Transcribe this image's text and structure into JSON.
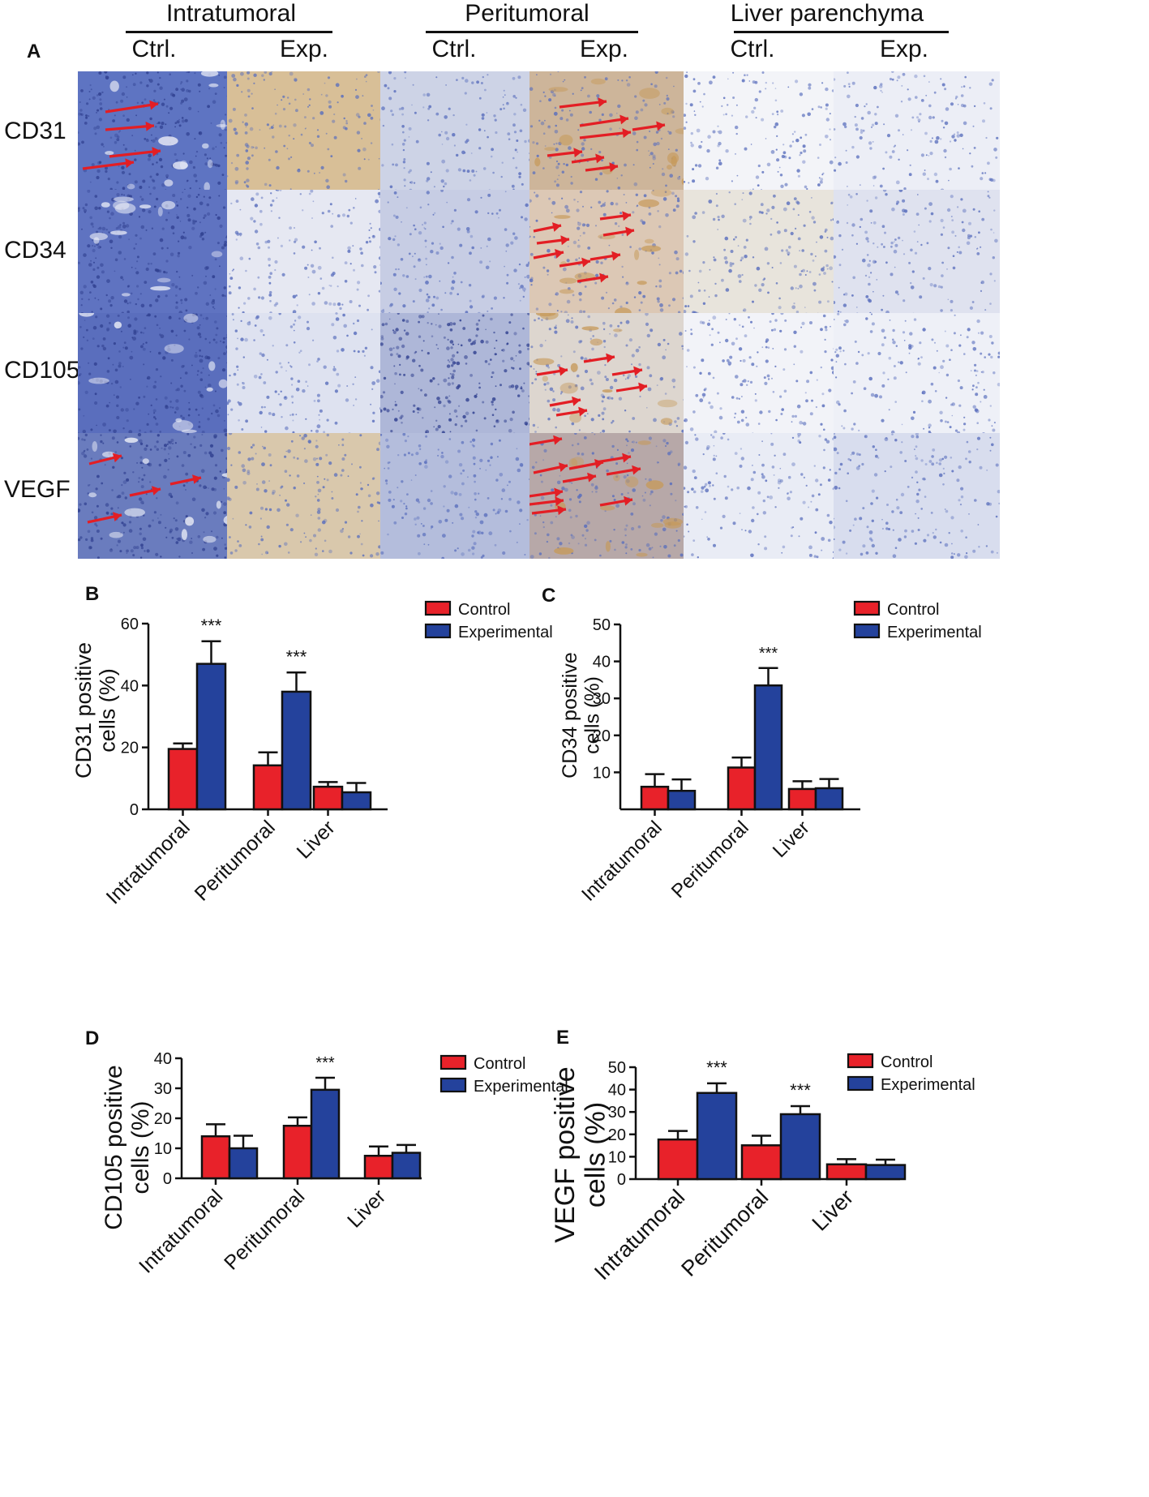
{
  "panel_a": {
    "letter": "A",
    "groups": [
      {
        "title": "Intratumoral",
        "cols": [
          "Ctrl.",
          "Exp."
        ]
      },
      {
        "title": "Peritumoral",
        "cols": [
          "Ctrl.",
          "Exp."
        ]
      },
      {
        "title": "Liver parenchyma",
        "cols": [
          "Ctrl.",
          "Exp."
        ]
      }
    ],
    "rows": [
      "CD31",
      "CD34",
      "CD105",
      "VEGF"
    ],
    "stain_colors": {
      "hematoxylin": "#5a6fbd",
      "dab": "#c69a5a",
      "arrow": "#e31e24"
    },
    "arrow_icon": "red-arrow-icon"
  },
  "chart_data": [
    {
      "panel": "B",
      "type": "bar",
      "ylabel": "CD31 positive cells (%)",
      "categories": [
        "Intratumoral",
        "Peritumoral",
        "Liver"
      ],
      "ylim": [
        0,
        60
      ],
      "yticks": [
        0,
        20,
        40,
        60
      ],
      "series": [
        {
          "name": "Control",
          "color": "#e8222a",
          "values": [
            19.5,
            14.2,
            7.3
          ],
          "errors": [
            1.8,
            4.2,
            1.5
          ]
        },
        {
          "name": "Experimental",
          "color": "#24429c",
          "values": [
            47,
            38,
            5.5
          ],
          "errors": [
            7.3,
            6.2,
            3.0
          ]
        }
      ],
      "annotations": [
        {
          "category": "Intratumoral",
          "text": "***"
        },
        {
          "category": "Peritumoral",
          "text": "***"
        }
      ]
    },
    {
      "panel": "C",
      "type": "bar",
      "ylabel": "CD34 positive cells (%)",
      "categories": [
        "Intratumoral",
        "Peritumoral",
        "Liver"
      ],
      "ylim": [
        0,
        50
      ],
      "yticks": [
        10,
        20,
        30,
        40,
        50
      ],
      "series": [
        {
          "name": "Control",
          "color": "#e8222a",
          "values": [
            6.1,
            11.3,
            5.5
          ],
          "errors": [
            3.4,
            2.7,
            2.1
          ]
        },
        {
          "name": "Experimental",
          "color": "#24429c",
          "values": [
            5.0,
            33.5,
            5.7
          ],
          "errors": [
            3.1,
            4.7,
            2.5
          ]
        }
      ],
      "annotations": [
        {
          "category": "Peritumoral",
          "text": "***"
        }
      ]
    },
    {
      "panel": "D",
      "type": "bar",
      "ylabel": "CD105 positive cells (%)",
      "categories": [
        "Intratumoral",
        "Peritumoral",
        "Liver"
      ],
      "ylim": [
        0,
        40
      ],
      "yticks": [
        0,
        10,
        20,
        30,
        40
      ],
      "series": [
        {
          "name": "Control",
          "color": "#e8222a",
          "values": [
            14,
            17.5,
            7.5
          ],
          "errors": [
            4.0,
            2.8,
            3.1
          ]
        },
        {
          "name": "Experimental",
          "color": "#24429c",
          "values": [
            10,
            29.5,
            8.5
          ],
          "errors": [
            4.2,
            4.0,
            2.6
          ]
        }
      ],
      "annotations": [
        {
          "category": "Peritumoral",
          "text": "***"
        }
      ]
    },
    {
      "panel": "E",
      "type": "bar",
      "ylabel": "VEGF positive cells (%)",
      "categories": [
        "Intratumoral",
        "Peritumoral",
        "Liver"
      ],
      "ylim": [
        0,
        50
      ],
      "yticks": [
        0,
        10,
        20,
        30,
        40,
        50
      ],
      "series": [
        {
          "name": "Control",
          "color": "#e8222a",
          "values": [
            17.7,
            15.1,
            6.6
          ],
          "errors": [
            3.8,
            4.3,
            2.3
          ]
        },
        {
          "name": "Experimental",
          "color": "#24429c",
          "values": [
            38.5,
            29,
            6.3
          ],
          "errors": [
            4.3,
            3.6,
            2.4
          ]
        }
      ],
      "annotations": [
        {
          "category": "Intratumoral",
          "text": "***"
        },
        {
          "category": "Peritumoral",
          "text": "***"
        }
      ]
    }
  ]
}
